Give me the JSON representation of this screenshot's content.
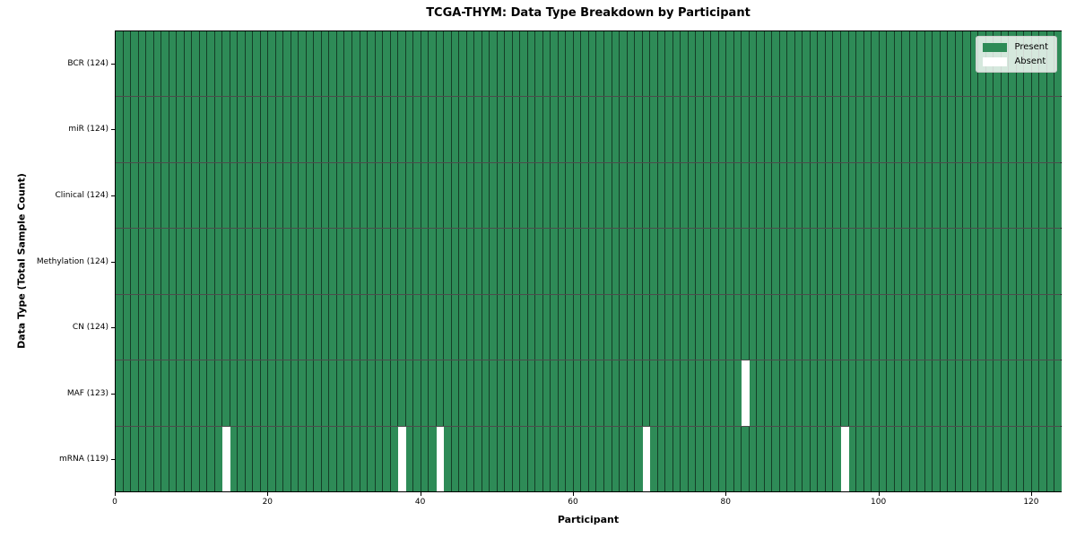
{
  "chart_data": {
    "type": "heatmap",
    "title": "TCGA-THYM: Data Type Breakdown by Participant",
    "xlabel": "Participant",
    "ylabel": "Data Type (Total Sample Count)",
    "n_participants": 124,
    "xlim": [
      0,
      124
    ],
    "x_ticks": [
      0,
      20,
      40,
      60,
      80,
      100,
      120
    ],
    "grid": false,
    "rows": [
      {
        "label": "BCR (124)",
        "total": 124,
        "absent_participants": []
      },
      {
        "label": "miR (124)",
        "total": 124,
        "absent_participants": []
      },
      {
        "label": "Clinical (124)",
        "total": 124,
        "absent_participants": []
      },
      {
        "label": "Methylation (124)",
        "total": 124,
        "absent_participants": []
      },
      {
        "label": "CN (124)",
        "total": 124,
        "absent_participants": []
      },
      {
        "label": "MAF (123)",
        "total": 123,
        "absent_participants": [
          82
        ]
      },
      {
        "label": "mRNA (119)",
        "total": 119,
        "absent_participants": [
          14,
          37,
          42,
          69,
          95
        ]
      }
    ],
    "legend": {
      "position": "upper right",
      "entries": [
        {
          "label": "Present",
          "color": "#2e8b57"
        },
        {
          "label": "Absent",
          "color": "#ffffff"
        }
      ]
    },
    "colors": {
      "present": "#2e8b57",
      "absent": "#ffffff",
      "cell_edge": "rgba(0,0,0,0.55)",
      "row_edge": "rgba(0,0,0,0.70)",
      "spine": "#000000"
    }
  }
}
